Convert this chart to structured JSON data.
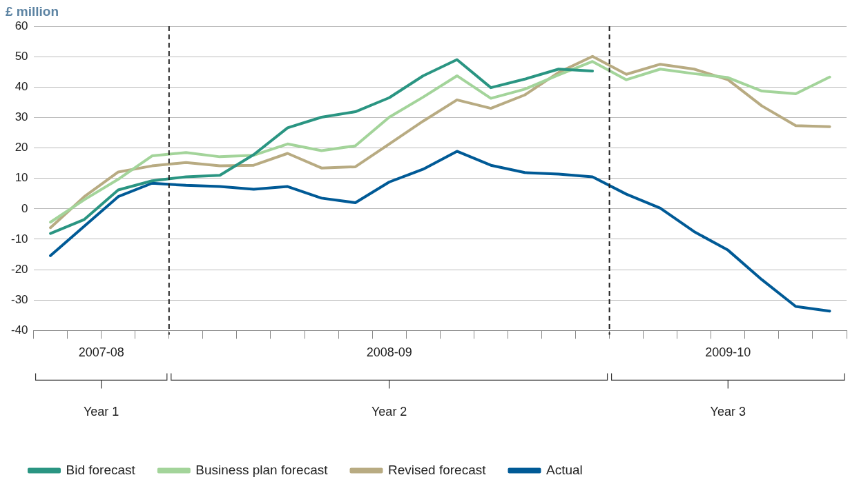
{
  "chart_data": {
    "type": "line",
    "ylabel": "£ million",
    "categories": [
      null,
      null,
      null,
      null,
      null,
      null,
      null,
      null,
      null,
      null,
      null,
      null,
      null,
      null,
      null,
      null,
      null,
      null,
      null,
      null,
      null,
      null,
      null,
      null
    ],
    "series": [
      {
        "name": "Bid forecast",
        "color": "#2a9582",
        "values": [
          -8.1,
          -3.5,
          6.2,
          9.2,
          10.5,
          11,
          17.8,
          26.6,
          30.1,
          31.9,
          36.5,
          43.7,
          49,
          39.8,
          42.6,
          45.9,
          45.3,
          null,
          null,
          null,
          null,
          null,
          null,
          null
        ]
      },
      {
        "name": "Business plan forecast",
        "color": "#a3d49a",
        "values": [
          -4.4,
          3,
          9.7,
          17.4,
          18.5,
          17.1,
          17.6,
          21.3,
          19.1,
          20.7,
          30.1,
          36.7,
          43.7,
          36.3,
          39.3,
          44,
          48.4,
          42.4,
          45.9,
          44.4,
          43.1,
          38.7,
          37.8,
          43.3
        ]
      },
      {
        "name": "Revised forecast",
        "color": "#b8ab82",
        "values": [
          -6.2,
          4,
          12.1,
          14.1,
          15.2,
          14.1,
          14.3,
          18.2,
          13.4,
          13.8,
          21.3,
          28.8,
          35.8,
          33,
          37.4,
          44.8,
          50.1,
          44.2,
          47.5,
          45.9,
          42.4,
          33.8,
          27.3,
          27
        ]
      },
      {
        "name": "Actual",
        "color": "#005a96",
        "values": [
          -15.4,
          -5.7,
          4,
          8.4,
          7.7,
          7.3,
          6.4,
          7.3,
          3.5,
          2,
          8.8,
          13,
          18.9,
          14.3,
          11.9,
          11.4,
          10.5,
          4.8,
          0.2,
          -7.5,
          -13.6,
          -23.3,
          -32.1,
          -33.6
        ]
      }
    ],
    "ylim": [
      -40,
      60
    ],
    "yticks": [
      -40,
      -30,
      -20,
      -10,
      0,
      10,
      20,
      30,
      40,
      50,
      60
    ],
    "annotations": [
      "2007-08",
      "2008-09",
      "2009-10",
      "Year 1",
      "Year 2",
      "Year 3"
    ],
    "grid": "y",
    "legend": "bottom left",
    "marker": "none",
    "line_style": "solid"
  }
}
